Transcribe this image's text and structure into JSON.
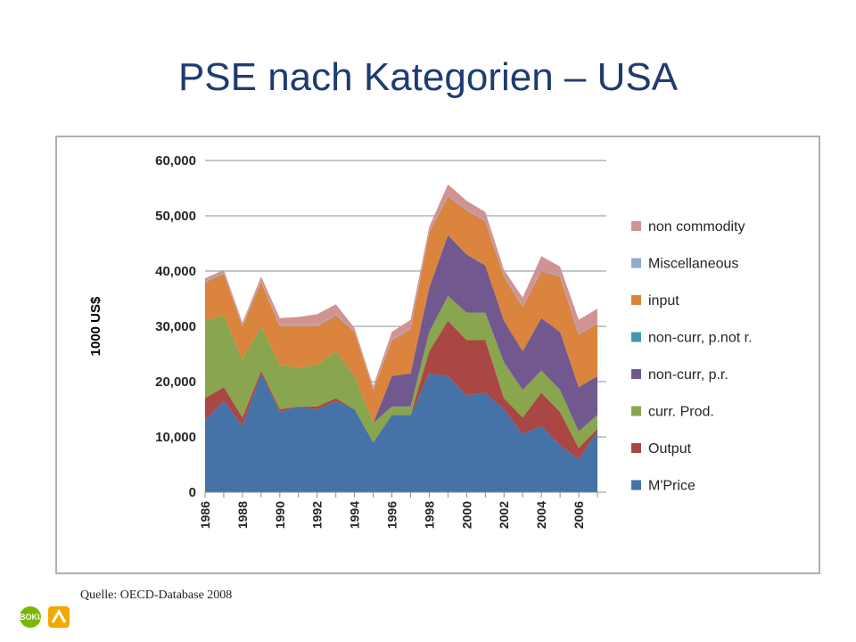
{
  "slide": {
    "title": "PSE nach Kategorien – USA",
    "source": "Quelle: OECD-Database 2008",
    "logos": [
      "boku-logo",
      "partner-logo"
    ],
    "logo_text": "BOKU"
  },
  "chart_data": {
    "type": "area",
    "stacked": true,
    "title": "",
    "xlabel": "",
    "ylabel": "1000 US$",
    "ylim": [
      0,
      60000
    ],
    "yticks": [
      "0",
      "10,000",
      "20,000",
      "30,000",
      "40,000",
      "50,000",
      "60,000"
    ],
    "xticks": [
      "1986",
      "1988",
      "1990",
      "1992",
      "1994",
      "1996",
      "1998",
      "2000",
      "2002",
      "2004",
      "2006"
    ],
    "grid": true,
    "legend_position": "right",
    "x": [
      1986,
      1987,
      1988,
      1989,
      1990,
      1991,
      1992,
      1993,
      1994,
      1995,
      1996,
      1997,
      1998,
      1999,
      2000,
      2001,
      2002,
      2003,
      2004,
      2005,
      2006,
      2007
    ],
    "series": [
      {
        "name": "M'Price",
        "color": "#4572a7",
        "values": [
          13000,
          16500,
          12000,
          21500,
          14500,
          15500,
          15000,
          16500,
          15000,
          9000,
          14000,
          14000,
          21500,
          21000,
          17500,
          18000,
          15000,
          10500,
          12000,
          8500,
          6000,
          11000
        ]
      },
      {
        "name": "Output",
        "color": "#aa4643",
        "values": [
          4000,
          2500,
          1500,
          500,
          500,
          0,
          500,
          500,
          0,
          0,
          0,
          0,
          4000,
          10000,
          10000,
          9500,
          2000,
          3000,
          6000,
          6000,
          2000,
          500
        ]
      },
      {
        "name": "curr. Prod.",
        "color": "#89a54e",
        "values": [
          14000,
          13000,
          10500,
          8000,
          8000,
          7000,
          7500,
          8500,
          6000,
          3500,
          1500,
          1500,
          3500,
          4500,
          5000,
          5000,
          6500,
          5000,
          4000,
          4000,
          3000,
          2500
        ]
      },
      {
        "name": "non-curr, p.r.",
        "color": "#71588f",
        "values": [
          0,
          0,
          0,
          0,
          0,
          0,
          0,
          0,
          0,
          0,
          5500,
          6000,
          8000,
          11000,
          10500,
          8500,
          7500,
          7000,
          9500,
          10500,
          8000,
          7000
        ]
      },
      {
        "name": "non-curr, p.not r.",
        "color": "#4198af",
        "values": [
          0,
          0,
          0,
          0,
          0,
          0,
          0,
          0,
          0,
          0,
          0,
          0,
          0,
          0,
          0,
          0,
          0,
          0,
          0,
          0,
          0,
          0
        ]
      },
      {
        "name": "input",
        "color": "#db843d",
        "values": [
          7000,
          7500,
          6000,
          8000,
          7000,
          7500,
          7000,
          6500,
          8000,
          6000,
          6500,
          8000,
          10000,
          7000,
          8000,
          8000,
          8000,
          8000,
          8500,
          10000,
          9500,
          9500
        ]
      },
      {
        "name": "Miscellaneous",
        "color": "#93a9cf",
        "values": [
          200,
          200,
          200,
          200,
          200,
          200,
          200,
          200,
          200,
          200,
          200,
          200,
          200,
          200,
          200,
          200,
          200,
          200,
          200,
          200,
          200,
          200
        ]
      },
      {
        "name": "non commodity",
        "color": "#d19392",
        "values": [
          500,
          500,
          500,
          800,
          1300,
          1500,
          2000,
          1800,
          500,
          500,
          1300,
          1500,
          800,
          2000,
          1500,
          1500,
          1000,
          1500,
          2500,
          1600,
          2500,
          2500
        ]
      }
    ]
  }
}
